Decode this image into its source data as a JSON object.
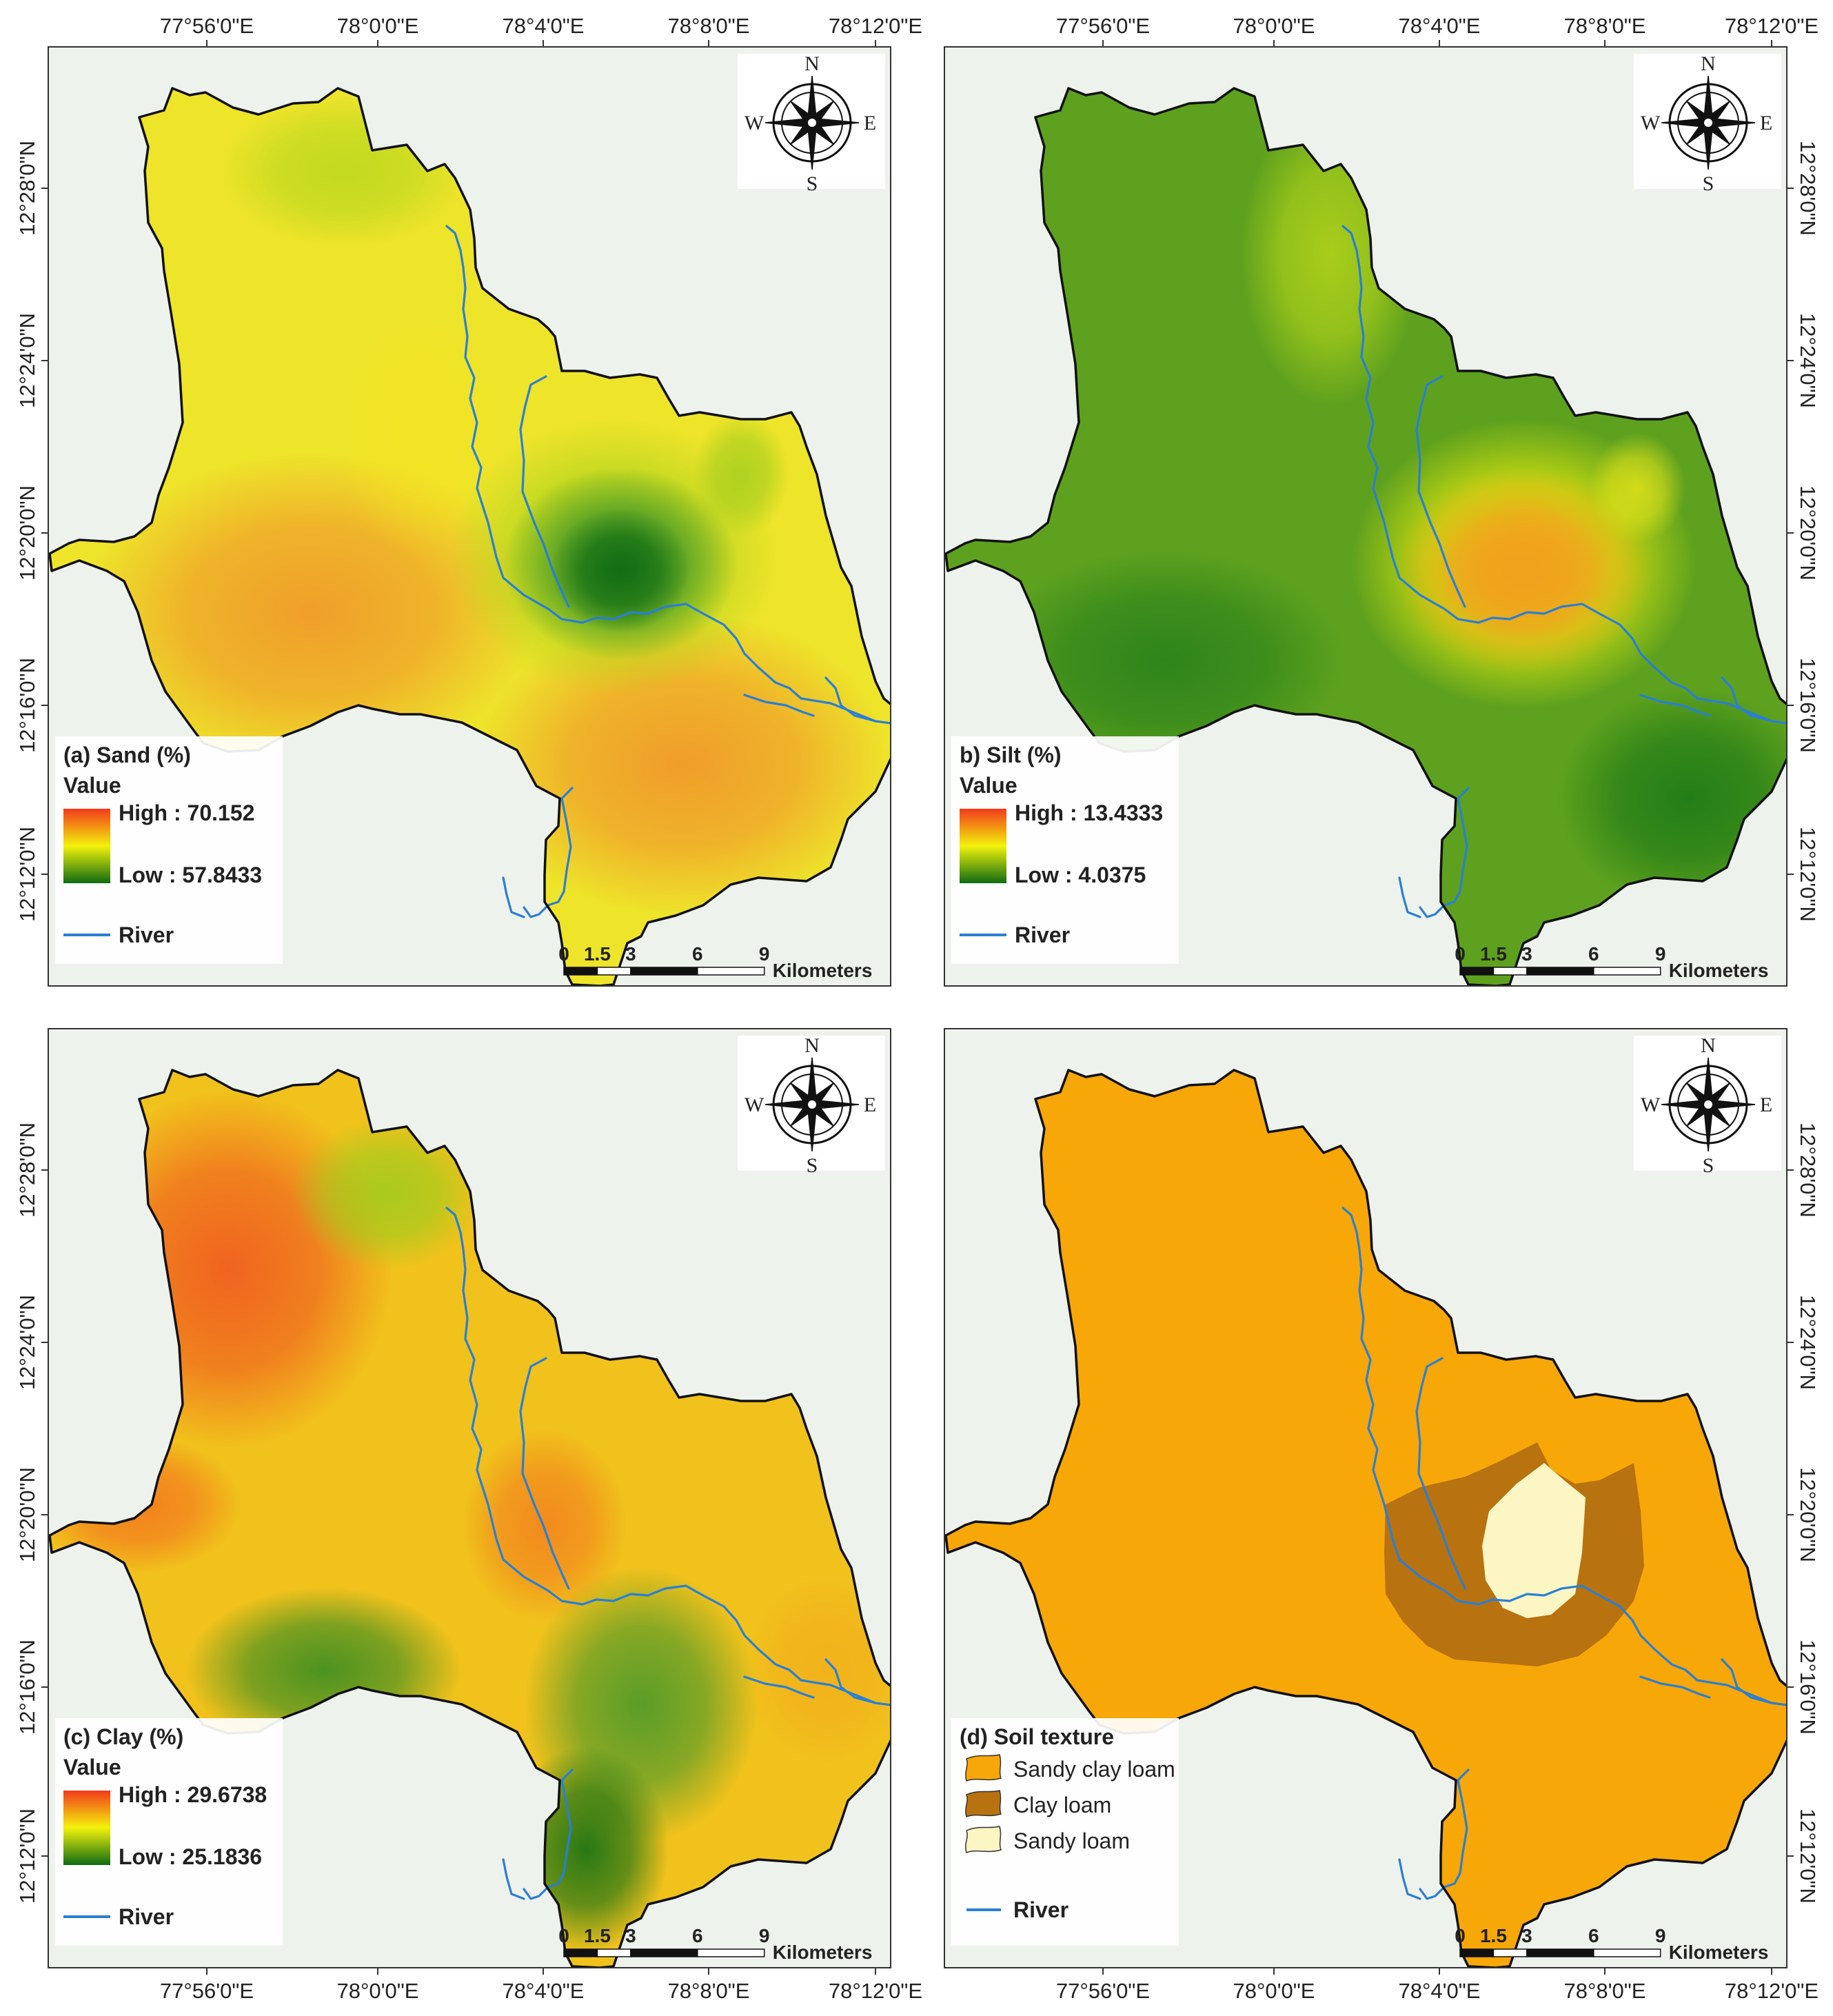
{
  "axes": {
    "x_ticks": [
      "77°56'0\"E",
      "78°0'0\"E",
      "78°4'0\"E",
      "78°8'0\"E",
      "78°12'0\"E"
    ],
    "y_ticks": [
      "12°28'0\"N",
      "12°24'0\"N",
      "12°20'0\"N",
      "12°16'0\"N",
      "12°12'0\"N"
    ]
  },
  "compass": {
    "n": "N",
    "s": "S",
    "e": "E",
    "w": "W"
  },
  "scalebar": {
    "labels": [
      "0",
      "1.5",
      "3",
      "6",
      "9"
    ],
    "unit": "Kilometers"
  },
  "colors": {
    "basemap": "#eef2ec",
    "river": "#2a7fd4",
    "boundary": "#111111",
    "ramp_high": "#f23a1c",
    "ramp_mid": "#f3f20b",
    "ramp_low": "#0f6b12",
    "sandy_clay_loam": "#f7a707",
    "clay_loam": "#b8720f",
    "sandy_loam": "#fbf6c4"
  },
  "panels": {
    "a": {
      "title": "(a) Sand (%)",
      "value_label": "Value",
      "high": "High : 70.152",
      "low": "Low : 57.8433",
      "river": "River"
    },
    "b": {
      "title": "b) Silt (%)",
      "value_label": "Value",
      "high": "High : 13.4333",
      "low": "Low : 4.0375",
      "river": "River"
    },
    "c": {
      "title": "(c) Clay (%)",
      "value_label": "Value",
      "high": "High : 29.6738",
      "low": "Low : 25.1836",
      "river": "River"
    },
    "d": {
      "title": "(d) Soil texture",
      "classes": [
        "Sandy clay loam",
        "Clay loam",
        "Sandy loam"
      ],
      "river": "River"
    }
  }
}
